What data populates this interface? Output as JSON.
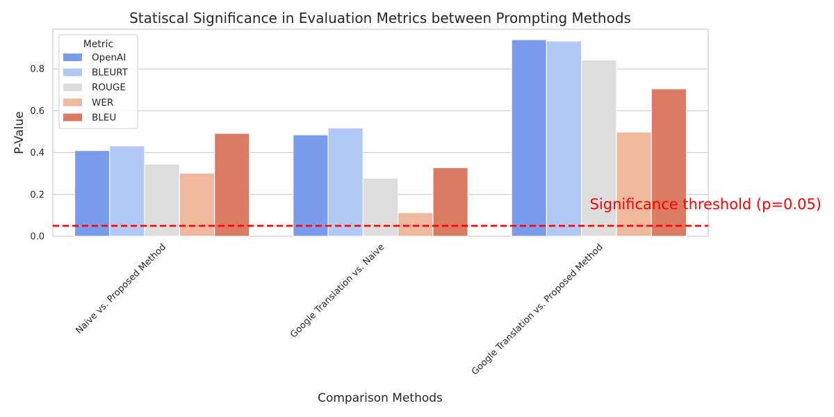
{
  "chart_data": {
    "type": "bar",
    "title": "Statiscal Significance in Evaluation Metrics between Prompting Methods",
    "xlabel": "Comparison Methods",
    "ylabel": "P-Value",
    "ylim": [
      0,
      0.99
    ],
    "yticks": [
      "0.0",
      "0.2",
      "0.4",
      "0.6",
      "0.8"
    ],
    "grid": true,
    "legend": {
      "title": "Metric",
      "placement": "top-left"
    },
    "categories": [
      "Naive vs. Proposed Method",
      "Google Translation vs. Naive",
      "Google Translation vs. Proposed Method"
    ],
    "series": [
      {
        "name": "OpenAI",
        "color": "#7b9bec",
        "values": [
          0.41,
          0.485,
          0.94
        ]
      },
      {
        "name": "BLEURT",
        "color": "#b2c9f6",
        "values": [
          0.432,
          0.518,
          0.933
        ]
      },
      {
        "name": "ROUGE",
        "color": "#dddddd",
        "values": [
          0.345,
          0.278,
          0.843
        ]
      },
      {
        "name": "WER",
        "color": "#f0b89e",
        "values": [
          0.302,
          0.113,
          0.498
        ]
      },
      {
        "name": "BLEU",
        "color": "#dc7b64",
        "values": [
          0.492,
          0.328,
          0.705
        ]
      }
    ],
    "threshold": {
      "value": 0.05,
      "label": "Significance threshold (p=0.05)",
      "color": "#ff0000"
    }
  }
}
